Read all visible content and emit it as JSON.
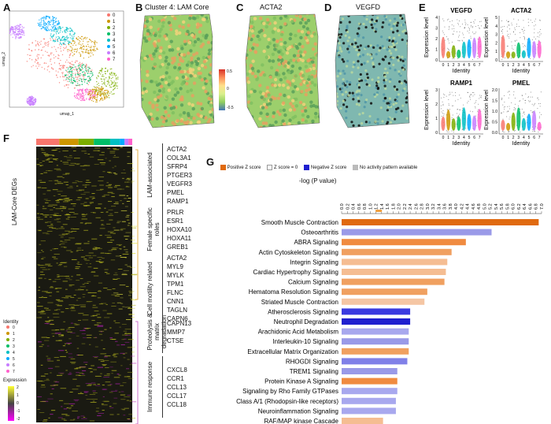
{
  "panels": {
    "A": {
      "letter": "A",
      "x_axis": "umap_1",
      "y_axis": "umap_2",
      "clusters": [
        "0",
        "1",
        "2",
        "3",
        "4",
        "5",
        "6",
        "7"
      ],
      "colors": [
        "#f8766d",
        "#cd9600",
        "#7cae00",
        "#00be67",
        "#00bfc4",
        "#00a9ff",
        "#c77cff",
        "#ff61cc"
      ]
    },
    "B": {
      "letter": "B",
      "title": "Cluster 4: LAM Core",
      "scale_ticks": [
        "0.5",
        "0",
        "-0.5"
      ]
    },
    "C": {
      "letter": "C",
      "title": "ACTA2"
    },
    "D": {
      "letter": "D",
      "title": "VEGFD"
    },
    "E": {
      "letter": "E",
      "plots": [
        {
          "title": "VEGFD",
          "ylabel": "Expression level",
          "xlabel": "Identity",
          "yticks": [
            "4",
            "3",
            "2",
            "1",
            "0"
          ]
        },
        {
          "title": "ACTA2",
          "ylabel": "Expression level",
          "xlabel": "Identity",
          "yticks": [
            "5",
            "4",
            "3",
            "2",
            "1",
            "0"
          ]
        },
        {
          "title": "RAMP1",
          "ylabel": "Expression level",
          "xlabel": "Identity",
          "yticks": [
            "3",
            "2",
            "1",
            "0"
          ]
        },
        {
          "title": "PMEL",
          "ylabel": "Expression level",
          "xlabel": "Identity",
          "yticks": [
            "2.0",
            "1.5",
            "1.0",
            "0.5",
            "0.0"
          ]
        }
      ],
      "identity_ticks": [
        "0",
        "1",
        "2",
        "3",
        "4",
        "5",
        "6",
        "7"
      ]
    },
    "F": {
      "letter": "F",
      "ylabel": "LAM-Core DEGs",
      "identity_title": "Identity",
      "identity_items": [
        "0",
        "1",
        "2",
        "3",
        "4",
        "5",
        "6",
        "7"
      ],
      "expression_title": "Expression",
      "expression_ticks": [
        "2",
        "1",
        "0",
        "-1",
        "-2"
      ],
      "groups": [
        {
          "label": "LAM-associated",
          "genes": [
            "ACTA2",
            "COL3A1",
            "SFRP4",
            "PTGER3",
            "VEGFR3",
            "PMEL",
            "RAMP1"
          ]
        },
        {
          "label": "Female specific roles",
          "genes": [
            "PRLR",
            "ESR1",
            "HOXA10",
            "HOXA11",
            "GREB1"
          ]
        },
        {
          "label": "Cell motility related",
          "genes": [
            "ACTA2",
            "MYL9",
            "MYLK",
            "TPM1",
            "FLNC",
            "CNN1",
            "TAGLN",
            "CAPN6"
          ]
        },
        {
          "label": "Proteolysis & matrix degradation",
          "genes": [
            "CAPN13",
            "MMP7",
            "CTSE"
          ]
        },
        {
          "label": "Immune response",
          "genes": [
            "CXCL8",
            "CCR1",
            "CCL13",
            "CCL17",
            "CCL18"
          ]
        }
      ]
    },
    "G": {
      "letter": "G",
      "legend": [
        "Positive Z score",
        "Z score = 0",
        "Negative Z score",
        "No activity pattern available"
      ],
      "axis_title": "-log (P value)"
    }
  },
  "chart_data": {
    "type": "bar",
    "orientation": "horizontal",
    "xlabel": "-log (P value)",
    "xlim": [
      0,
      7.0
    ],
    "x_ticks": [
      "0.0",
      "0.2",
      "0.4",
      "0.6",
      "0.8",
      "1.0",
      "1.2",
      "1.4",
      "1.6",
      "1.8",
      "2.0",
      "2.2",
      "2.4",
      "2.6",
      "2.8",
      "3.0",
      "3.2",
      "3.4",
      "3.6",
      "3.8",
      "4.0",
      "4.2",
      "4.4",
      "4.6",
      "4.8",
      "5.0",
      "5.2",
      "5.4",
      "5.6",
      "5.8",
      "6.0",
      "6.2",
      "6.4",
      "6.6",
      "6.8",
      "7.0"
    ],
    "threshold": 1.3,
    "categories": [
      "Smooth Muscle Contraction",
      "Osteoarthritis",
      "ABRA Signaling",
      "Actin Cytoskeleton Signaling",
      "Integrin Signaling",
      "Cardiac Hypertrophy Signaling",
      "Calcium Signaling",
      "Hematoma Resolution Signaling",
      "Striated Muscle Contraction",
      "Atherosclerosis Signaling",
      "Neutrophil Degradation",
      "Arachidonic Acid Metabolism",
      "Interleukin-10 Signaling",
      "Extracellular Matrix Organization",
      "RHOGDI Signaling",
      "TREM1 Signaling",
      "Protein Kinase A Signaling",
      "Signaling by Rho Family GTPases",
      "Class A/1 (Rhodopsin-like receptors)",
      "Neuroinflammation Signaling",
      "RAF/MAP kinase Cascade"
    ],
    "values": [
      6.9,
      5.25,
      4.35,
      3.85,
      3.7,
      3.65,
      3.6,
      3.0,
      2.9,
      2.4,
      2.4,
      2.35,
      2.35,
      2.35,
      2.3,
      1.95,
      1.95,
      1.95,
      1.9,
      1.9,
      1.45
    ],
    "colors": [
      "#e06a10",
      "#9a9ae8",
      "#f08b40",
      "#f0a060",
      "#f5bd92",
      "#f5bd92",
      "#f0a060",
      "#f0a060",
      "#f5c6a4",
      "#3a3ae0",
      "#1f1fcf",
      "#a8a8ee",
      "#9a9ae8",
      "#f0a060",
      "#8080e8",
      "#9a9ae8",
      "#f08b40",
      "#a8a8ee",
      "#a8a8ee",
      "#a8a8ee",
      "#f5bd92"
    ]
  }
}
